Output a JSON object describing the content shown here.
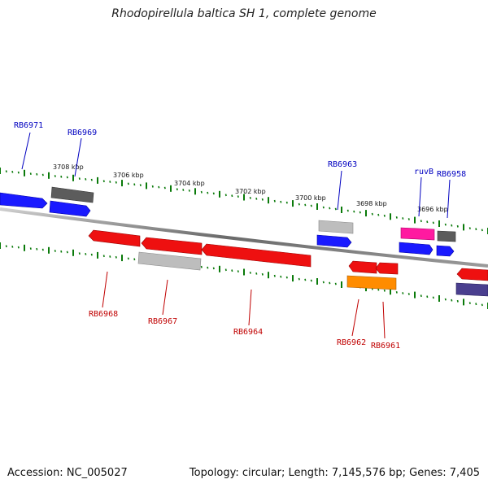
{
  "title": "Rhodopirellula baltica SH 1, complete genome",
  "accession": "Accession: NC_005027",
  "summary": "Topology: circular; Length: 7,145,576 bp; Genes: 7,405",
  "colors": {
    "backbone": "#7a7a7a",
    "tick": "#0a7a0a",
    "forward_gene": "#1010ff",
    "reverse_gene": "#ee1010",
    "grey_gene": "#5a5a5a",
    "light_grey_gene": "#b8b8b8",
    "magenta_gene": "#ff1aa0",
    "orange_gene": "#ff8c00",
    "purple_gene": "#4a3f8f",
    "forward_label": "#0000c0",
    "reverse_label": "#c00000"
  },
  "scale_labels": [
    "3708 kbp",
    "3706 kbp",
    "3704 kbp",
    "3702 kbp",
    "3700 kbp",
    "3698 kbp",
    "3696 kbp"
  ],
  "forward_labels": [
    "RB6971",
    "RB6969",
    "RB6963",
    "ruvB",
    "RB6958"
  ],
  "reverse_labels": [
    "RB6968",
    "RB6967",
    "RB6964",
    "RB6962",
    "RB6961"
  ]
}
